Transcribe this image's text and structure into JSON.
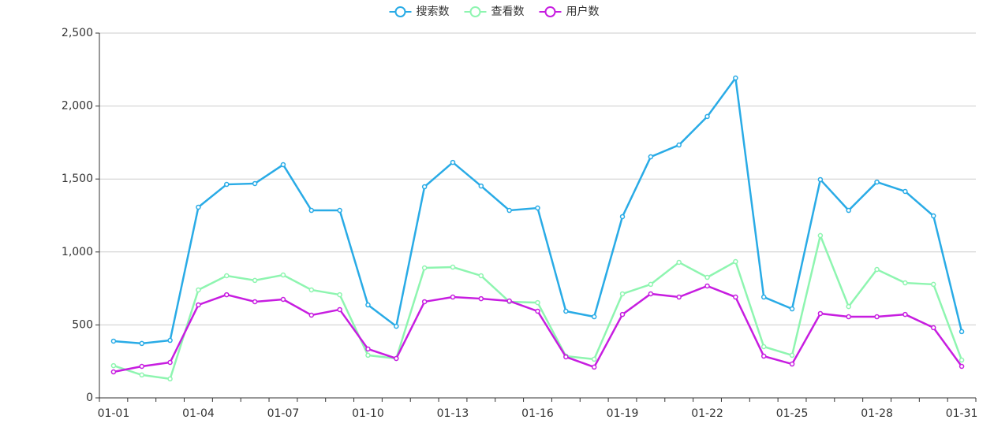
{
  "chart_data": {
    "type": "line",
    "categories": [
      "01-01",
      null,
      null,
      "01-04",
      null,
      null,
      "01-07",
      null,
      null,
      "01-10",
      null,
      null,
      "01-13",
      null,
      null,
      "01-16",
      null,
      null,
      "01-19",
      null,
      null,
      "01-22",
      null,
      null,
      "01-25",
      null,
      null,
      "01-28",
      null,
      null,
      "01-31"
    ],
    "series": [
      {
        "name": "搜索数",
        "color": "#29abe6",
        "values": [
          389,
          373,
          394,
          1307,
          1463,
          1469,
          1598,
          1285,
          1285,
          637,
          491,
          1447,
          1614,
          1452,
          1285,
          1301,
          594,
          556,
          1242,
          1652,
          1733,
          1928,
          2192,
          691,
          610,
          1496,
          1285,
          1479,
          1415,
          1247,
          454
        ]
      },
      {
        "name": "查看数",
        "color": "#8ef5b0",
        "values": [
          221,
          157,
          130,
          740,
          837,
          805,
          842,
          740,
          707,
          292,
          270,
          891,
          896,
          837,
          659,
          653,
          286,
          265,
          713,
          778,
          929,
          826,
          934,
          351,
          292,
          1112,
          626,
          880,
          788,
          778,
          259
        ]
      },
      {
        "name": "用户数",
        "color": "#c71de0",
        "values": [
          178,
          216,
          243,
          637,
          707,
          659,
          675,
          567,
          605,
          335,
          270,
          659,
          691,
          680,
          664,
          594,
          281,
          211,
          572,
          713,
          691,
          767,
          691,
          286,
          232,
          578,
          556,
          556,
          572,
          481,
          216
        ]
      }
    ],
    "ylim": [
      0,
      2500
    ],
    "yticks": [
      0,
      500,
      {
        "value": 1000,
        "label": "1,000"
      },
      {
        "value": 1500,
        "label": "1,500"
      },
      {
        "value": 2000,
        "label": "2,000"
      },
      {
        "value": 2500,
        "label": "2,500"
      }
    ],
    "grid": true,
    "legend": "top"
  }
}
